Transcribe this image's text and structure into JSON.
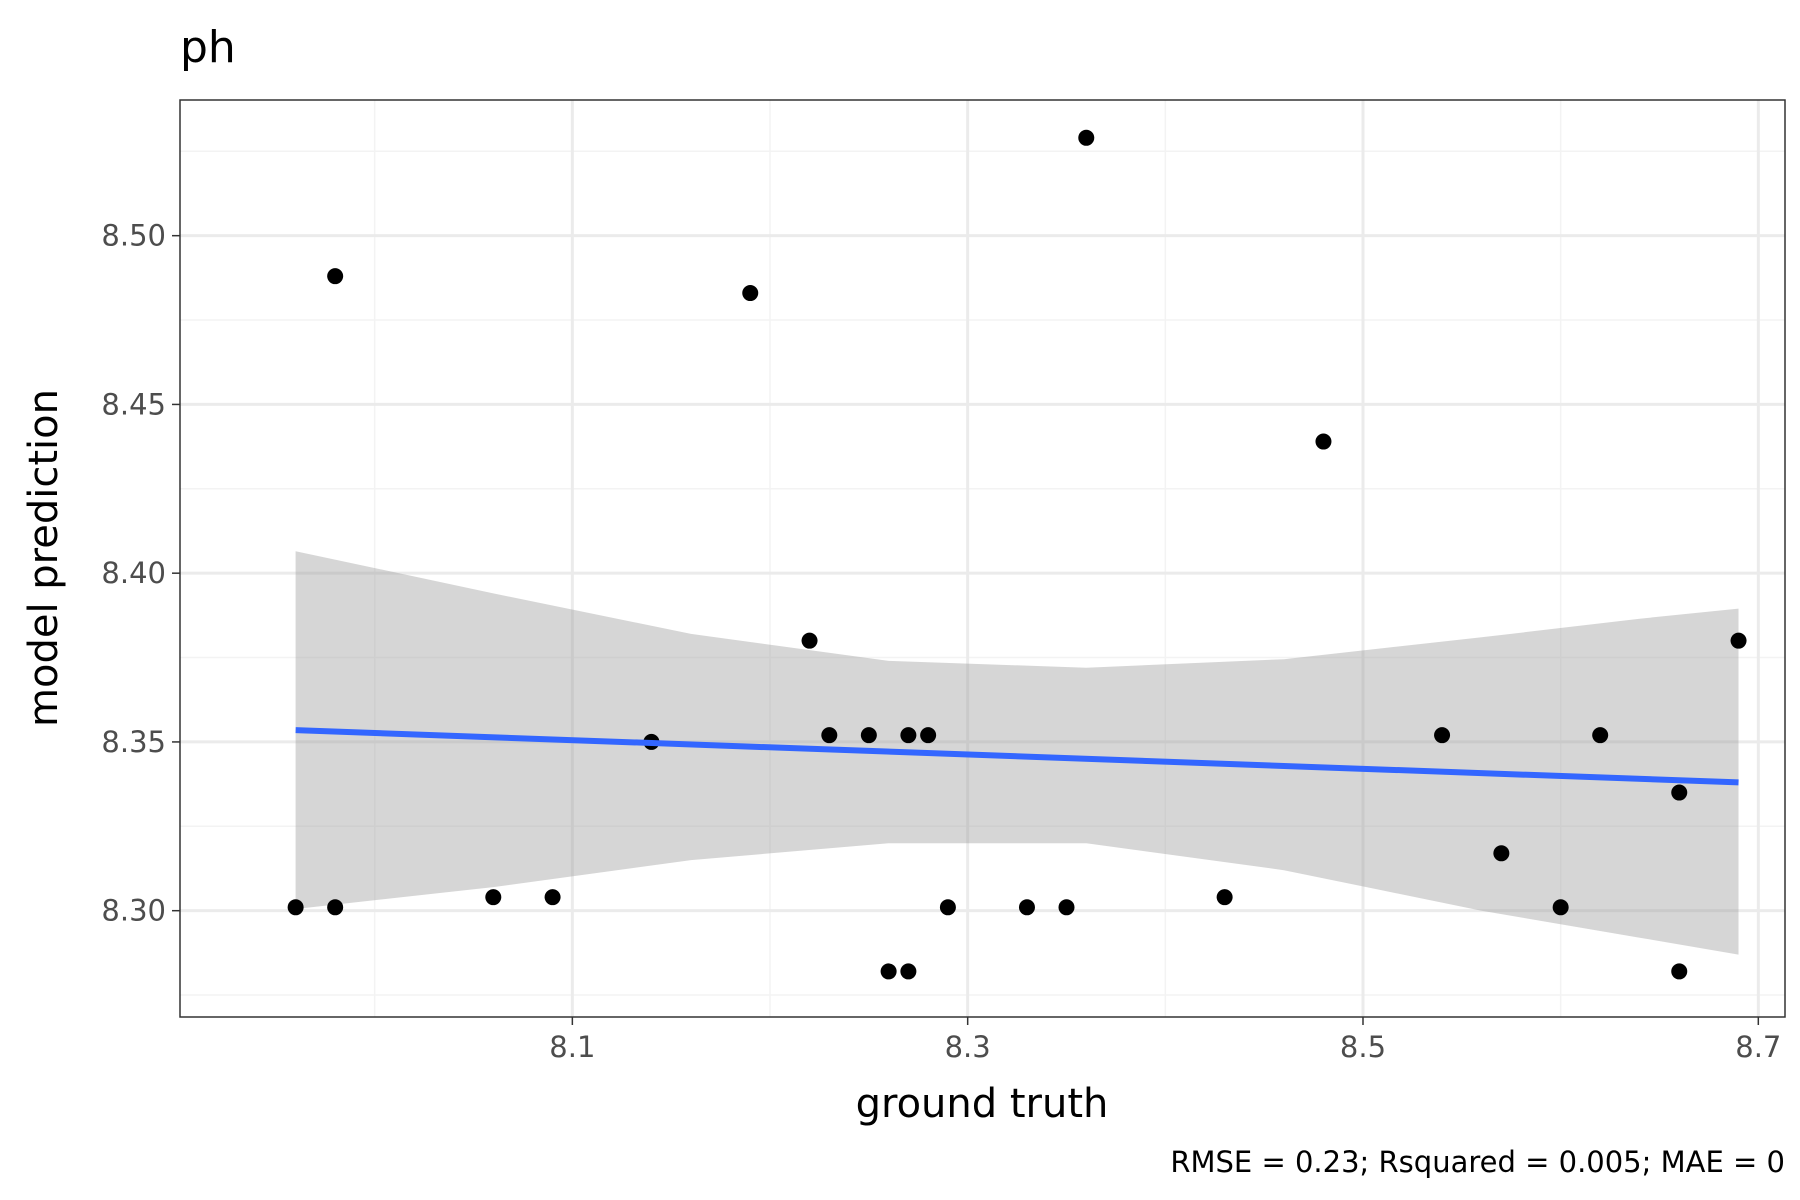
{
  "chart_data": {
    "type": "scatter",
    "title": "ph",
    "xlabel": "ground truth",
    "ylabel": "model prediction",
    "caption": "RMSE = 0.23; Rsquared = 0.005; MAE = 0",
    "xlim": [
      7.9015,
      8.7135
    ],
    "ylim": [
      8.2685,
      8.5402
    ],
    "x_ticks": [
      8.1,
      8.3,
      8.5,
      8.7
    ],
    "x_tick_labels": [
      "8.1",
      "8.3",
      "8.5",
      "8.7"
    ],
    "x_minor_ticks": [
      8.0,
      8.2,
      8.4,
      8.6
    ],
    "y_ticks": [
      8.3,
      8.35,
      8.4,
      8.45,
      8.5
    ],
    "y_tick_labels": [
      "8.30",
      "8.35",
      "8.40",
      "8.45",
      "8.50"
    ],
    "y_minor_ticks": [
      8.275,
      8.325,
      8.375,
      8.425,
      8.475,
      8.525
    ],
    "grid": true,
    "legend": "none",
    "points": [
      {
        "x": 7.96,
        "y": 8.301
      },
      {
        "x": 7.98,
        "y": 8.301
      },
      {
        "x": 7.98,
        "y": 8.488
      },
      {
        "x": 8.06,
        "y": 8.304
      },
      {
        "x": 8.09,
        "y": 8.304
      },
      {
        "x": 8.14,
        "y": 8.35
      },
      {
        "x": 8.19,
        "y": 8.483
      },
      {
        "x": 8.22,
        "y": 8.38
      },
      {
        "x": 8.23,
        "y": 8.352
      },
      {
        "x": 8.25,
        "y": 8.352
      },
      {
        "x": 8.26,
        "y": 8.282
      },
      {
        "x": 8.27,
        "y": 8.282
      },
      {
        "x": 8.27,
        "y": 8.352
      },
      {
        "x": 8.28,
        "y": 8.352
      },
      {
        "x": 8.29,
        "y": 8.301
      },
      {
        "x": 8.33,
        "y": 8.301
      },
      {
        "x": 8.35,
        "y": 8.301
      },
      {
        "x": 8.36,
        "y": 8.529
      },
      {
        "x": 8.43,
        "y": 8.304
      },
      {
        "x": 8.48,
        "y": 8.439
      },
      {
        "x": 8.54,
        "y": 8.352
      },
      {
        "x": 8.57,
        "y": 8.317
      },
      {
        "x": 8.6,
        "y": 8.301
      },
      {
        "x": 8.62,
        "y": 8.352
      },
      {
        "x": 8.66,
        "y": 8.335
      },
      {
        "x": 8.66,
        "y": 8.282
      },
      {
        "x": 8.69,
        "y": 8.38
      }
    ],
    "fit_line": {
      "x": [
        7.96,
        8.69
      ],
      "y": [
        8.3535,
        8.338
      ]
    },
    "confidence_band": {
      "x": [
        7.96,
        8.06,
        8.16,
        8.26,
        8.36,
        8.46,
        8.56,
        8.64,
        8.69
      ],
      "upper": [
        8.4065,
        8.394,
        8.382,
        8.374,
        8.372,
        8.3745,
        8.381,
        8.3865,
        8.3895
      ],
      "lower": [
        8.3005,
        8.307,
        8.315,
        8.32,
        8.32,
        8.312,
        8.3,
        8.292,
        8.287
      ]
    },
    "colors": {
      "points": "#000000",
      "fit_line": "#3366FF",
      "band": "#999999",
      "grid_major": "#EBEBEB",
      "grid_minor": "#F3F3F3",
      "panel_border": "#333333",
      "tick_label": "#4D4D4D"
    }
  }
}
